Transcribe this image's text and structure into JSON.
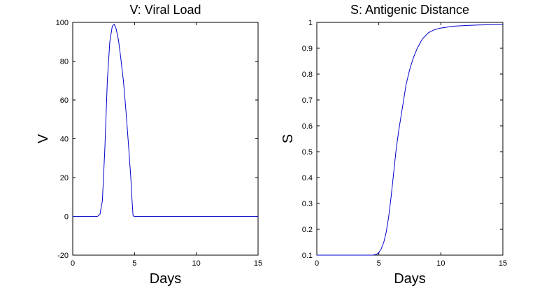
{
  "chart_data": [
    {
      "type": "line",
      "title": "V: Viral Load",
      "xlabel": "Days",
      "ylabel": "V",
      "xlim": [
        0,
        15
      ],
      "ylim": [
        -20,
        100
      ],
      "xticks": [
        "0",
        "5",
        "10",
        "15"
      ],
      "yticks": [
        "-20",
        "0",
        "20",
        "40",
        "60",
        "80",
        "100"
      ],
      "grid": false,
      "line_color": "#0000cc",
      "series": [
        {
          "x": [
            0,
            2.0,
            2.2,
            2.4,
            2.6,
            2.8,
            3.0,
            3.2,
            3.35,
            3.5,
            3.7,
            3.9,
            4.1,
            4.3,
            4.5,
            4.7,
            4.8,
            4.88,
            4.95,
            5.5,
            10,
            15
          ],
          "y": [
            0,
            0,
            1,
            8,
            35,
            70,
            90,
            98,
            99,
            97,
            91,
            81,
            70,
            55,
            38,
            20,
            8,
            0.5,
            0,
            0,
            0,
            0
          ]
        }
      ]
    },
    {
      "type": "line",
      "title": "S: Antigenic Distance",
      "xlabel": "Days",
      "ylabel": "S",
      "xlim": [
        0,
        15
      ],
      "ylim": [
        0.1,
        1
      ],
      "xticks": [
        "0",
        "5",
        "10",
        "15"
      ],
      "yticks": [
        "0.1",
        "0.2",
        "0.3",
        "0.4",
        "0.5",
        "0.6",
        "0.7",
        "0.8",
        "0.9",
        "1"
      ],
      "grid": false,
      "line_color": "#0000cc",
      "series": [
        {
          "x": [
            0,
            4.5,
            4.8,
            5.0,
            5.2,
            5.4,
            5.6,
            5.8,
            6.0,
            6.2,
            6.4,
            6.6,
            6.8,
            7.0,
            7.2,
            7.5,
            7.8,
            8.1,
            8.5,
            9.0,
            9.5,
            10,
            11,
            12,
            13,
            14,
            15
          ],
          "y": [
            0.1,
            0.1,
            0.103,
            0.11,
            0.125,
            0.15,
            0.19,
            0.25,
            0.33,
            0.42,
            0.51,
            0.58,
            0.64,
            0.7,
            0.76,
            0.82,
            0.865,
            0.9,
            0.935,
            0.96,
            0.972,
            0.978,
            0.985,
            0.988,
            0.99,
            0.991,
            0.992
          ]
        }
      ]
    }
  ]
}
